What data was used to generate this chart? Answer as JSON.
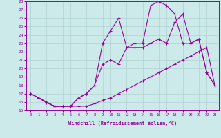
{
  "title": "",
  "xlabel": "Windchill (Refroidissement éolien,°C)",
  "ylabel": "",
  "bg_color": "#cceaea",
  "line_color": "#990099",
  "xlim": [
    -0.5,
    23.5
  ],
  "ylim": [
    15,
    28
  ],
  "xticks": [
    0,
    1,
    2,
    3,
    4,
    5,
    6,
    7,
    8,
    9,
    10,
    11,
    12,
    13,
    14,
    15,
    16,
    17,
    18,
    19,
    20,
    21,
    22,
    23
  ],
  "yticks": [
    15,
    16,
    17,
    18,
    19,
    20,
    21,
    22,
    23,
    24,
    25,
    26,
    27,
    28
  ],
  "line1_x": [
    0,
    1,
    2,
    3,
    4,
    5,
    6,
    7,
    8,
    9,
    10,
    11,
    12,
    13,
    14,
    15,
    16,
    17,
    18,
    19,
    20,
    21,
    22,
    23
  ],
  "line1_y": [
    17.0,
    16.5,
    15.9,
    15.5,
    15.5,
    15.5,
    15.5,
    15.5,
    15.8,
    16.2,
    16.5,
    17.0,
    17.5,
    18.0,
    18.5,
    19.0,
    19.5,
    20.0,
    20.5,
    21.0,
    21.5,
    22.0,
    22.5,
    18.0
  ],
  "line2_x": [
    0,
    1,
    2,
    3,
    4,
    5,
    6,
    7,
    8,
    9,
    10,
    11,
    12,
    13,
    14,
    15,
    16,
    17,
    18,
    19,
    20,
    21,
    22,
    23
  ],
  "line2_y": [
    17.0,
    16.5,
    16.0,
    15.5,
    15.5,
    15.5,
    16.5,
    17.0,
    18.0,
    20.5,
    21.0,
    20.5,
    22.5,
    22.5,
    22.5,
    23.0,
    23.5,
    23.0,
    25.5,
    26.5,
    23.0,
    23.5,
    19.5,
    18.0
  ],
  "line3_x": [
    0,
    1,
    2,
    3,
    4,
    5,
    6,
    7,
    8,
    9,
    10,
    11,
    12,
    13,
    14,
    15,
    16,
    17,
    18,
    19,
    20,
    21,
    22,
    23
  ],
  "line3_y": [
    17.0,
    16.5,
    16.0,
    15.5,
    15.5,
    15.5,
    16.5,
    17.0,
    18.0,
    23.0,
    24.5,
    26.0,
    22.5,
    23.0,
    23.0,
    27.5,
    28.0,
    27.5,
    26.5,
    23.0,
    23.0,
    23.5,
    19.5,
    18.0
  ]
}
